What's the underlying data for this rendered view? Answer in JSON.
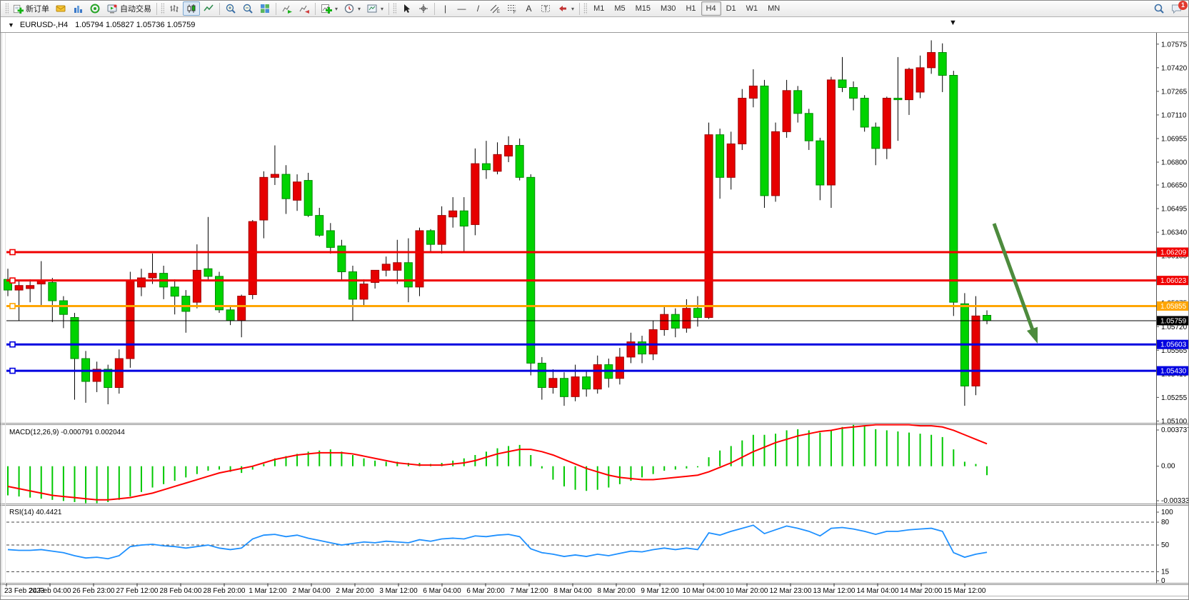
{
  "app": {
    "badge_count": "1"
  },
  "toolbar": {
    "new_order_label": "新订单",
    "auto_trading_label": "自动交易",
    "timeframes": [
      "M1",
      "M5",
      "M15",
      "M30",
      "H1",
      "H4",
      "D1",
      "W1",
      "MN"
    ],
    "active_timeframe": "H4"
  },
  "chart_title": {
    "symbol_period": "EURUSD-,H4",
    "ohlc": "1.05794 1.05827 1.05736 1.05759"
  },
  "chart_data": {
    "type": "candlestick",
    "symbol": "EURUSD-",
    "period": "H4",
    "colors": {
      "bull": "#e60000",
      "bull_border": "#a00000",
      "bear": "#00d300",
      "bear_border": "#008a00",
      "wick": "#000000"
    },
    "price_axis_labels": [
      "1.07575",
      "1.07420",
      "1.07265",
      "1.07110",
      "1.06955",
      "1.06800",
      "1.06650",
      "1.06495",
      "1.06340",
      "1.06185",
      "1.06030",
      "1.05875",
      "1.05720",
      "1.05565",
      "1.05410",
      "1.05255",
      "1.05100"
    ],
    "time_labels": [
      "23 Feb 2023",
      "24 Feb 04:00",
      "26 Feb 23:00",
      "27 Feb 12:00",
      "28 Feb 04:00",
      "28 Feb 20:00",
      "1 Mar 12:00",
      "2 Mar 04:00",
      "2 Mar 20:00",
      "3 Mar 12:00",
      "6 Mar 04:00",
      "6 Mar 20:00",
      "7 Mar 12:00",
      "8 Mar 04:00",
      "8 Mar 20:00",
      "9 Mar 12:00",
      "10 Mar 04:00",
      "10 Mar 20:00",
      "12 Mar 23:00",
      "13 Mar 12:00",
      "14 Mar 04:00",
      "14 Mar 20:00",
      "15 Mar 12:00"
    ],
    "candles_ohlc_x100000": [
      [
        106030,
        106100,
        105920,
        105960
      ],
      [
        105960,
        106020,
        105760,
        105990
      ],
      [
        105970,
        106030,
        105880,
        105990
      ],
      [
        106000,
        106150,
        105850,
        106020
      ],
      [
        106010,
        106040,
        105750,
        105890
      ],
      [
        105890,
        105920,
        105710,
        105800
      ],
      [
        105780,
        105810,
        105240,
        105510
      ],
      [
        105510,
        105560,
        105220,
        105360
      ],
      [
        105360,
        105490,
        105290,
        105440
      ],
      [
        105440,
        105470,
        105210,
        105320
      ],
      [
        105320,
        105570,
        105280,
        105510
      ],
      [
        105510,
        106080,
        105450,
        106020
      ],
      [
        105980,
        106100,
        105920,
        106040
      ],
      [
        106040,
        106200,
        106000,
        106070
      ],
      [
        106070,
        106120,
        105900,
        105980
      ],
      [
        105980,
        106030,
        105800,
        105920
      ],
      [
        105920,
        105960,
        105680,
        105820
      ],
      [
        105880,
        106260,
        105840,
        106090
      ],
      [
        106100,
        106440,
        106030,
        106050
      ],
      [
        106050,
        106080,
        105810,
        105830
      ],
      [
        105830,
        105860,
        105730,
        105760
      ],
      [
        105760,
        105930,
        105650,
        105920
      ],
      [
        105930,
        106420,
        105900,
        106410
      ],
      [
        106420,
        106740,
        106300,
        106700
      ],
      [
        106700,
        106910,
        106650,
        106720
      ],
      [
        106720,
        106780,
        106460,
        106560
      ],
      [
        106550,
        106720,
        106480,
        106670
      ],
      [
        106680,
        106730,
        106440,
        106450
      ],
      [
        106450,
        106500,
        106310,
        106320
      ],
      [
        106350,
        106400,
        106200,
        106240
      ],
      [
        106250,
        106290,
        106020,
        106080
      ],
      [
        106080,
        106120,
        105760,
        105900
      ],
      [
        105900,
        106030,
        105850,
        106000
      ],
      [
        106010,
        106090,
        105970,
        106090
      ],
      [
        106090,
        106180,
        106050,
        106130
      ],
      [
        106090,
        106290,
        106000,
        106140
      ],
      [
        106140,
        106300,
        105880,
        105980
      ],
      [
        105980,
        106370,
        105920,
        106350
      ],
      [
        106350,
        106360,
        106210,
        106260
      ],
      [
        106260,
        106510,
        106200,
        106450
      ],
      [
        106440,
        106570,
        106370,
        106480
      ],
      [
        106480,
        106570,
        106210,
        106380
      ],
      [
        106390,
        106890,
        106320,
        106790
      ],
      [
        106790,
        106940,
        106690,
        106750
      ],
      [
        106740,
        106930,
        106720,
        106850
      ],
      [
        106840,
        106970,
        106800,
        106910
      ],
      [
        106910,
        106955,
        106680,
        106700
      ],
      [
        106700,
        106720,
        105400,
        105480
      ],
      [
        105480,
        105520,
        105240,
        105320
      ],
      [
        105320,
        105440,
        105280,
        105380
      ],
      [
        105380,
        105420,
        105200,
        105260
      ],
      [
        105260,
        105470,
        105230,
        105390
      ],
      [
        105390,
        105430,
        105260,
        105310
      ],
      [
        105310,
        105530,
        105280,
        105470
      ],
      [
        105470,
        105510,
        105320,
        105380
      ],
      [
        105380,
        105580,
        105340,
        105520
      ],
      [
        105520,
        105680,
        105480,
        105620
      ],
      [
        105620,
        105660,
        105480,
        105540
      ],
      [
        105540,
        105760,
        105500,
        105700
      ],
      [
        105700,
        105860,
        105660,
        105800
      ],
      [
        105800,
        105840,
        105650,
        105710
      ],
      [
        105710,
        105900,
        105680,
        105840
      ],
      [
        105840,
        105920,
        105720,
        105780
      ],
      [
        105780,
        107060,
        105770,
        106980
      ],
      [
        106980,
        107020,
        106560,
        106700
      ],
      [
        106700,
        107000,
        106620,
        106920
      ],
      [
        106920,
        107280,
        106880,
        107220
      ],
      [
        107220,
        107410,
        107160,
        107300
      ],
      [
        107300,
        107340,
        106500,
        106580
      ],
      [
        106580,
        107060,
        106540,
        107000
      ],
      [
        107000,
        107340,
        106960,
        107270
      ],
      [
        107270,
        107300,
        107060,
        107120
      ],
      [
        107120,
        107150,
        106880,
        106940
      ],
      [
        106940,
        106960,
        106550,
        106650
      ],
      [
        106650,
        107360,
        106500,
        107340
      ],
      [
        107340,
        107490,
        107260,
        107290
      ],
      [
        107290,
        107330,
        107140,
        107220
      ],
      [
        107220,
        107240,
        107000,
        107030
      ],
      [
        107030,
        107060,
        106780,
        106890
      ],
      [
        106890,
        107230,
        106820,
        107220
      ],
      [
        107220,
        107490,
        106940,
        107210
      ],
      [
        107210,
        107420,
        107110,
        107410
      ],
      [
        107260,
        107500,
        107220,
        107420
      ],
      [
        107420,
        107600,
        107380,
        107520
      ],
      [
        107520,
        107580,
        107260,
        107370
      ],
      [
        107370,
        107400,
        105790,
        105880
      ],
      [
        105870,
        105940,
        105200,
        105330
      ],
      [
        105330,
        105920,
        105270,
        105790
      ],
      [
        105794,
        105827,
        105736,
        105759
      ]
    ],
    "hlines": [
      {
        "price": 1.06209,
        "label": "1.06209",
        "color": "#f00000",
        "width": 3,
        "kind": "resistance"
      },
      {
        "price": 1.06023,
        "label": "1.06023",
        "color": "#f00000",
        "width": 3,
        "kind": "resistance"
      },
      {
        "price": 1.05855,
        "label": "1.05855",
        "color": "#ffa500",
        "width": 3,
        "kind": "pivot"
      },
      {
        "price": 1.05603,
        "label": "1.05603",
        "color": "#0000e0",
        "width": 3,
        "kind": "support"
      },
      {
        "price": 1.0543,
        "label": "1.05430",
        "color": "#0000e0",
        "width": 3,
        "kind": "support"
      }
    ],
    "current_price": {
      "price": 1.05759,
      "label": "1.05759",
      "color": "#000000"
    },
    "macd": {
      "label": "MACD(12,26,9) -0.000791 0.002044",
      "params": "12,26,9",
      "values_text": "-0.000791 0.002044",
      "axis_labels": [
        {
          "text": "0.003737",
          "value": 0.003737
        },
        {
          "text": "0.00",
          "value": 0.0
        },
        {
          "text": "-0.003337",
          "value": -0.003337
        }
      ],
      "hist_color": "#00c800",
      "signal_color": "#ff0000",
      "histogram_x10000": [
        -26,
        -27,
        -28,
        -29,
        -30,
        -31,
        -32,
        -33,
        -33,
        -32,
        -30,
        -27,
        -23,
        -19,
        -16,
        -13,
        -10,
        -7,
        -4,
        -3,
        -5,
        -6,
        -3,
        2,
        7,
        9,
        11,
        13,
        14,
        15,
        13,
        10,
        7,
        5,
        4,
        4,
        3,
        3,
        2,
        3,
        5,
        7,
        10,
        13,
        16,
        18,
        19,
        10,
        -2,
        -12,
        -18,
        -21,
        -22,
        -21,
        -19,
        -16,
        -13,
        -10,
        -7,
        -4,
        -3,
        -2,
        -1,
        8,
        14,
        18,
        23,
        28,
        28,
        29,
        32,
        33,
        32,
        30,
        32,
        35,
        37,
        36,
        33,
        32,
        31,
        30,
        29,
        28,
        26,
        15,
        4,
        2,
        -8
      ],
      "signal_x10000": [
        -18,
        -20,
        -22,
        -24,
        -26,
        -27,
        -28,
        -29,
        -30,
        -30,
        -29,
        -28,
        -26,
        -24,
        -21,
        -18,
        -15,
        -12,
        -9,
        -6,
        -4,
        -2,
        0,
        3,
        6,
        8,
        10,
        11,
        12,
        12,
        12,
        11,
        9,
        7,
        5,
        3,
        2,
        1,
        1,
        1,
        2,
        3,
        5,
        8,
        11,
        13,
        15,
        15,
        13,
        10,
        6,
        2,
        -2,
        -5,
        -8,
        -10,
        -11,
        -12,
        -12,
        -11,
        -10,
        -9,
        -8,
        -5,
        -1,
        3,
        8,
        13,
        17,
        21,
        24,
        27,
        29,
        31,
        32,
        34,
        35,
        36,
        37,
        37,
        37,
        37,
        36,
        36,
        35,
        32,
        28,
        24,
        20
      ]
    },
    "rsi": {
      "label": "RSI(14) 40.4421",
      "value": "40.4421",
      "color": "#1e90ff",
      "levels": [
        80,
        50,
        15
      ],
      "axis_labels": [
        {
          "text": "100",
          "value": 100
        },
        {
          "text": "80",
          "value": 80
        },
        {
          "text": "50",
          "value": 50
        },
        {
          "text": "15",
          "value": 15
        },
        {
          "text": "0",
          "value": 0
        }
      ],
      "values": [
        44,
        43,
        43,
        44,
        42,
        40,
        36,
        33,
        34,
        32,
        36,
        48,
        50,
        51,
        49,
        48,
        46,
        48,
        50,
        46,
        44,
        46,
        58,
        63,
        64,
        61,
        63,
        59,
        56,
        53,
        50,
        52,
        54,
        53,
        55,
        54,
        53,
        57,
        55,
        58,
        59,
        58,
        62,
        61,
        63,
        64,
        61,
        45,
        40,
        38,
        35,
        37,
        35,
        38,
        36,
        39,
        42,
        41,
        44,
        46,
        44,
        46,
        44,
        66,
        63,
        68,
        72,
        76,
        65,
        70,
        75,
        72,
        68,
        62,
        72,
        73,
        71,
        68,
        64,
        68,
        68,
        70,
        71,
        72,
        68,
        40,
        34,
        38,
        40.44
      ]
    },
    "annotation_arrow": {
      "from": [
        1391,
        312
      ],
      "to": [
        1452,
        480
      ],
      "color": "#4d8b3d"
    },
    "shift_marker": "▼"
  }
}
